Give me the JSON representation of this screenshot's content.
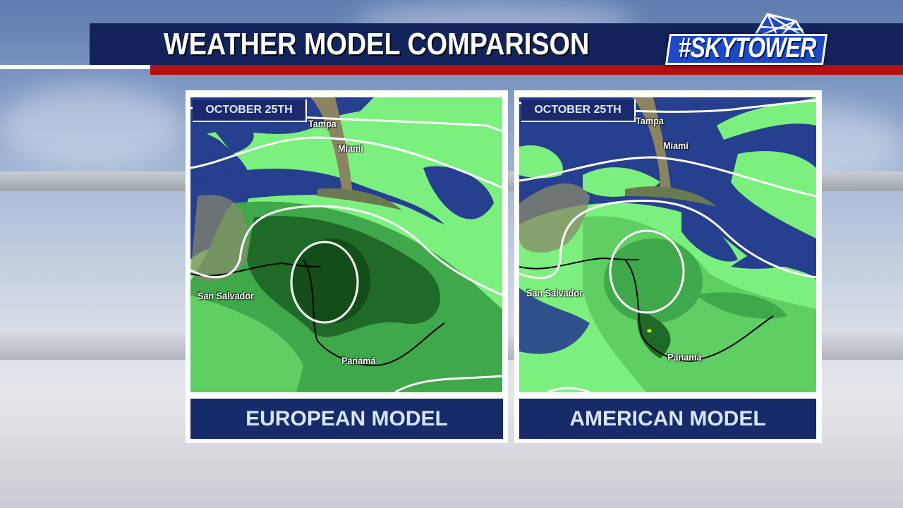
{
  "header": {
    "title": "WEATHER MODEL COMPARISON",
    "logo_text": "#SKYTOWER"
  },
  "colors": {
    "banner": "#13245c",
    "accent_red": "#b50f10",
    "ocean": "#263f8e",
    "rain_light": "#7cf07f",
    "rain_mid": "#3fa84a",
    "rain_heavy": "#1e6a26"
  },
  "panels": [
    {
      "date": "OCTOBER 25TH",
      "model": "EUROPEAN MODEL",
      "cities": {
        "tampa": "Tampa",
        "miami": "Miami",
        "san_salvador": "San Salvador",
        "panama": "Panamá"
      }
    },
    {
      "date": "OCTOBER 25TH",
      "model": "AMERICAN MODEL",
      "cities": {
        "tampa": "Tampa",
        "miami": "Miami",
        "san_salvador": "San Salvador",
        "panama": "Panamá"
      }
    }
  ]
}
